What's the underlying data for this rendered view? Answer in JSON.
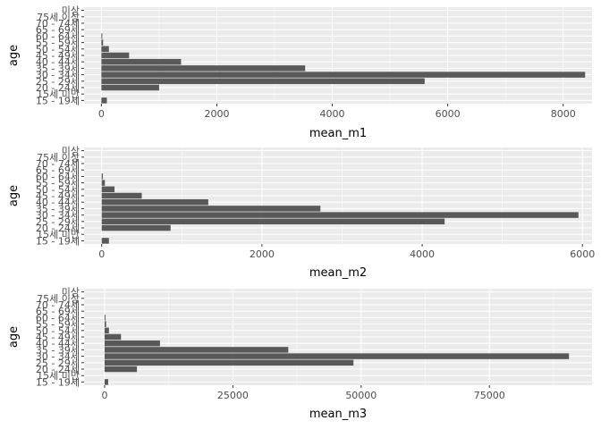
{
  "chart_data": [
    {
      "type": "bar",
      "orientation": "horizontal",
      "categories": [
        "15 - 19세",
        "15세 미만",
        "20 - 24세",
        "25 - 29세",
        "30 - 34세",
        "35 - 39세",
        "40 - 44세",
        "45 - 49세",
        "50 - 54세",
        "55 - 59세",
        "60 - 64세",
        "65 - 69세",
        "70 - 74세",
        "75세 이상",
        "미상"
      ],
      "values": [
        95,
        0,
        1000,
        5600,
        8380,
        3530,
        1380,
        480,
        130,
        30,
        15,
        0,
        0,
        0,
        0
      ],
      "xlabel": "mean_m1",
      "ylabel": "age",
      "xlim": [
        -300,
        8500
      ],
      "xticks": [
        0,
        2000,
        4000,
        6000,
        8000
      ],
      "xtick_labels": [
        "0",
        "2000",
        "4000",
        "6000",
        "8000"
      ],
      "grid": true
    },
    {
      "type": "bar",
      "orientation": "horizontal",
      "categories": [
        "15 - 19세",
        "15세 미만",
        "20 - 24세",
        "25 - 29세",
        "30 - 34세",
        "35 - 39세",
        "40 - 44세",
        "45 - 49세",
        "50 - 54세",
        "55 - 59세",
        "60 - 64세",
        "65 - 69세",
        "70 - 74세",
        "75세 이상",
        "미상"
      ],
      "values": [
        90,
        0,
        860,
        4280,
        5950,
        2730,
        1330,
        500,
        160,
        40,
        15,
        0,
        0,
        0,
        0
      ],
      "xlabel": "mean_m2",
      "ylabel": "age",
      "xlim": [
        -220,
        6120
      ],
      "xticks": [
        0,
        2000,
        4000,
        6000
      ],
      "xtick_labels": [
        "0",
        "2000",
        "4000",
        "6000"
      ],
      "grid": true
    },
    {
      "type": "bar",
      "orientation": "horizontal",
      "categories": [
        "15 - 19세",
        "15세 미만",
        "20 - 24세",
        "25 - 29세",
        "30 - 34세",
        "35 - 39세",
        "40 - 44세",
        "45 - 49세",
        "50 - 54세",
        "55 - 59세",
        "60 - 64세",
        "65 - 69세",
        "70 - 74세",
        "75세 이상",
        "미상"
      ],
      "values": [
        700,
        0,
        6300,
        48500,
        90500,
        35800,
        10800,
        3200,
        850,
        300,
        100,
        0,
        0,
        0,
        0
      ],
      "xlabel": "mean_m3",
      "ylabel": "age",
      "xlim": [
        -4000,
        95000
      ],
      "xticks": [
        0,
        25000,
        50000,
        75000
      ],
      "xtick_labels": [
        "0",
        "25000",
        "50000",
        "75000"
      ],
      "grid": true
    }
  ],
  "colors": {
    "panel_background": "#ebebeb",
    "grid_major": "#ffffff",
    "bar_fill": "#595959",
    "tick_text": "#4d4d4d",
    "title_text": "#000000"
  }
}
